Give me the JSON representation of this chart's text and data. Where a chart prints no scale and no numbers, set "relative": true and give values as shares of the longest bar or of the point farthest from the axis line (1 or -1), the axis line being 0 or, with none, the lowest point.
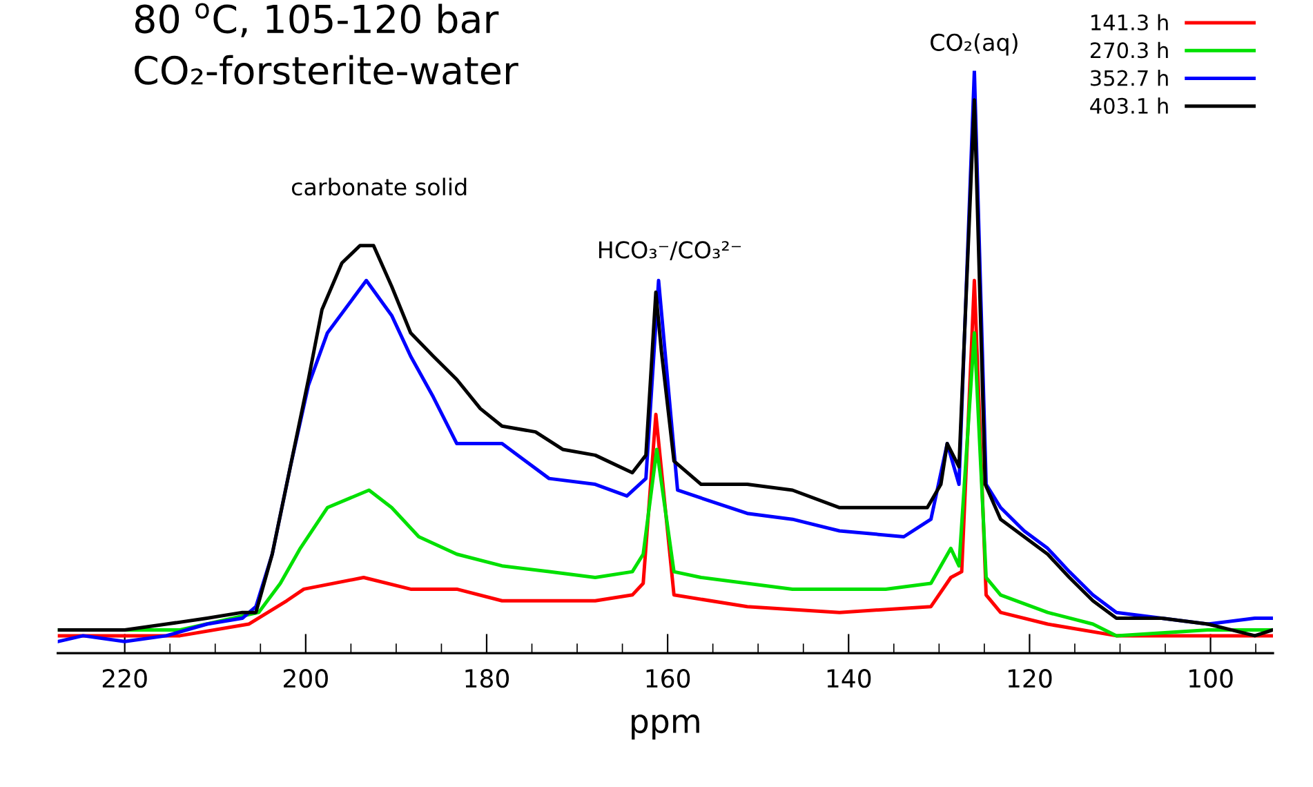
{
  "chart_data": {
    "type": "line",
    "title": "80 $^{o}$C, 105-120 bar",
    "subtitle": "CO₂-forsterite-water",
    "xlabel": "ppm",
    "relative": true,
    "xlim": [
      227.4,
      93.1
    ],
    "xticks": [
      220,
      {
        "value": 215,
        "label": null
      },
      {
        "value": 210,
        "label": null
      },
      {
        "value": 205,
        "label": null
      },
      200,
      {
        "value": 195,
        "label": null
      },
      {
        "value": 190,
        "label": null
      },
      {
        "value": 185,
        "label": null
      },
      180,
      {
        "value": 175,
        "label": null
      },
      {
        "value": 170,
        "label": null
      },
      {
        "value": 165,
        "label": null
      },
      160,
      {
        "value": 155,
        "label": null
      },
      {
        "value": 150,
        "label": null
      },
      {
        "value": 145,
        "label": null
      },
      140,
      {
        "value": 135,
        "label": null
      },
      {
        "value": 130,
        "label": null
      },
      {
        "value": 125,
        "label": null
      },
      120,
      {
        "value": 115,
        "label": null
      },
      {
        "value": 110,
        "label": null
      },
      {
        "value": 105,
        "label": null
      },
      100,
      {
        "value": 95,
        "label": null
      }
    ],
    "legend": "top right",
    "grid": false,
    "marker": "none",
    "line_style": "solid",
    "annotations": [
      "carbonate solid",
      "HCO₃⁻/CO₃²⁻",
      {
        "text": "CO₂(aq)",
        "x": 126.1,
        "y": 1.0
      }
    ],
    "series": [
      {
        "name": "141.3 h",
        "color": "#ff0000",
        "x": [
          227.4,
          220.0,
          213.9,
          206.3,
          202.1,
          200.2,
          193.6,
          188.4,
          183.3,
          178.3,
          173.1,
          168.0,
          163.9,
          162.7,
          161.3,
          159.3,
          151.2,
          141.0,
          130.9,
          128.7,
          127.5,
          126.1,
          124.8,
          123.2,
          118.0,
          110.4,
          100.3,
          93.1
        ],
        "values": [
          0.03,
          0.03,
          0.03,
          0.05,
          0.09,
          0.11,
          0.13,
          0.11,
          0.11,
          0.09,
          0.09,
          0.09,
          0.1,
          0.12,
          0.41,
          0.1,
          0.08,
          0.07,
          0.08,
          0.13,
          0.14,
          0.64,
          0.1,
          0.07,
          0.05,
          0.03,
          0.03,
          0.03
        ]
      },
      {
        "name": "270.3 h",
        "color": "#00e000",
        "x": [
          227.4,
          220.0,
          213.9,
          205.2,
          202.8,
          200.6,
          197.6,
          193.0,
          190.5,
          187.5,
          183.3,
          178.3,
          173.1,
          168.0,
          163.9,
          162.7,
          161.2,
          159.3,
          156.3,
          146.2,
          135.9,
          130.9,
          128.7,
          127.8,
          126.1,
          124.8,
          123.2,
          118.0,
          113.0,
          110.4,
          100.3,
          93.1
        ],
        "values": [
          0.04,
          0.04,
          0.04,
          0.07,
          0.12,
          0.18,
          0.25,
          0.28,
          0.25,
          0.2,
          0.17,
          0.15,
          0.14,
          0.13,
          0.14,
          0.17,
          0.35,
          0.14,
          0.13,
          0.11,
          0.11,
          0.12,
          0.18,
          0.15,
          0.55,
          0.13,
          0.1,
          0.07,
          0.05,
          0.03,
          0.04,
          0.04
        ]
      },
      {
        "name": "352.7 h",
        "color": "#0000ff",
        "x": [
          227.4,
          224.6,
          220.0,
          215.4,
          210.9,
          207.0,
          205.5,
          203.7,
          201.7,
          199.7,
          197.6,
          193.3,
          190.5,
          188.4,
          185.9,
          183.3,
          178.3,
          173.1,
          168.0,
          164.5,
          162.4,
          161.0,
          158.9,
          151.2,
          146.2,
          141.0,
          133.9,
          130.9,
          129.1,
          127.8,
          126.1,
          124.8,
          123.2,
          120.6,
          118.0,
          115.6,
          113.0,
          110.4,
          105.4,
          100.3,
          95.1,
          93.1
        ],
        "values": [
          0.02,
          0.03,
          0.02,
          0.03,
          0.05,
          0.06,
          0.08,
          0.17,
          0.32,
          0.46,
          0.55,
          0.64,
          0.58,
          0.51,
          0.44,
          0.36,
          0.36,
          0.3,
          0.29,
          0.27,
          0.3,
          0.64,
          0.28,
          0.24,
          0.23,
          0.21,
          0.2,
          0.23,
          0.36,
          0.29,
          1.0,
          0.29,
          0.25,
          0.21,
          0.18,
          0.14,
          0.1,
          0.07,
          0.06,
          0.05,
          0.06,
          0.06
        ]
      },
      {
        "name": "403.1 h",
        "color": "#000000",
        "x": [
          227.4,
          224.6,
          220.0,
          215.4,
          210.9,
          207.0,
          205.5,
          203.7,
          201.7,
          199.7,
          198.2,
          196.0,
          194.0,
          192.5,
          190.5,
          188.4,
          185.9,
          183.3,
          180.7,
          178.3,
          174.6,
          171.6,
          168.0,
          163.9,
          162.4,
          161.3,
          160.7,
          159.3,
          156.3,
          151.2,
          146.2,
          141.0,
          135.9,
          131.3,
          129.8,
          129.1,
          127.8,
          126.1,
          124.9,
          123.2,
          120.6,
          118.0,
          115.6,
          113.0,
          110.4,
          105.4,
          100.3,
          95.1,
          93.1
        ],
        "values": [
          0.04,
          0.04,
          0.04,
          0.05,
          0.06,
          0.07,
          0.07,
          0.17,
          0.32,
          0.47,
          0.59,
          0.67,
          0.7,
          0.7,
          0.63,
          0.55,
          0.51,
          0.47,
          0.42,
          0.39,
          0.38,
          0.35,
          0.34,
          0.31,
          0.34,
          0.62,
          0.52,
          0.33,
          0.29,
          0.29,
          0.28,
          0.25,
          0.25,
          0.25,
          0.29,
          0.36,
          0.32,
          0.95,
          0.29,
          0.23,
          0.2,
          0.17,
          0.13,
          0.09,
          0.06,
          0.06,
          0.05,
          0.03,
          0.04
        ]
      }
    ]
  }
}
